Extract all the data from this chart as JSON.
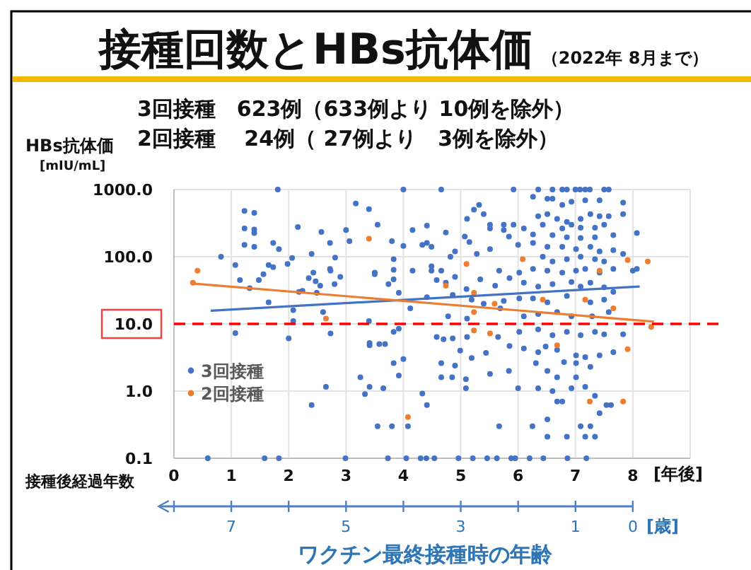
{
  "chart_data": {
    "type": "scatter",
    "title": "接種回数とHBs抗体価",
    "subtitle": "（2022年 8月まで）",
    "xlabel": "接種後経過年数",
    "ylabel": "HBs抗体価 [mIU/mL]",
    "x2label": "ワクチン最終接種時の年齢",
    "annotations": [
      "3回接種　623例（633例より 10例を除外）",
      "2回接種　 24例（ 27例より　3例を除外）",
      "[年後]",
      "[歳]"
    ],
    "log": "y",
    "xlim": [
      0,
      9
    ],
    "ylim": [
      0.1,
      1000
    ],
    "xticks": [
      0,
      1,
      2,
      3,
      4,
      5,
      6,
      7,
      8,
      {
        "value": 9,
        "label": null
      }
    ],
    "yticks": [
      0.1,
      {
        "value": 1,
        "label": "1.0"
      },
      {
        "value": 10,
        "label": "10.0"
      },
      {
        "value": 100,
        "label": "100.0"
      },
      {
        "value": 1000,
        "label": "1000.0"
      }
    ],
    "x2lim": [
      8,
      -1
    ],
    "x2ticks": [
      {
        "value": 8,
        "label": null
      },
      7,
      {
        "value": 6,
        "label": null
      },
      5,
      {
        "value": 4,
        "label": null
      },
      3,
      {
        "value": 2,
        "label": null
      },
      1,
      0
    ],
    "grid": true,
    "legend": "bottom left",
    "marker": "circle",
    "ref_lines": [
      {
        "axis": "y",
        "value": 10,
        "color": "#ff0000",
        "line_style": "dashed"
      }
    ],
    "series": [
      {
        "name": "3回接種",
        "color": "#4472c4",
        "x": [
          0.82,
          1.07,
          1.15,
          1.23,
          1.23,
          1.23,
          1.32,
          1.4,
          1.4,
          1.4,
          1.4,
          1.48,
          1.56,
          1.65,
          1.65,
          1.73,
          1.73,
          1.81,
          1.83,
          1.07,
          1.98,
          2.0,
          2.06,
          2.08,
          2.08,
          2.16,
          2.18,
          2.24,
          2.35,
          2.4,
          2.4,
          2.43,
          2.47,
          2.49,
          2.55,
          2.57,
          2.6,
          2.65,
          2.72,
          2.72,
          2.73,
          2.73,
          2.8,
          2.81,
          2.9,
          3.0,
          3.06,
          3.17,
          3.25,
          3.33,
          3.4,
          3.4,
          3.41,
          3.41,
          3.41,
          3.5,
          3.5,
          3.55,
          3.55,
          3.58,
          3.65,
          3.68,
          3.74,
          3.8,
          3.8,
          3.83,
          3.83,
          3.83,
          3.83,
          3.83,
          4.0,
          4.66,
          5.92,
          6.35,
          6.6,
          6.77,
          6.85,
          7.0,
          7.08,
          7.17,
          7.25,
          7.5,
          7.58,
          6.26,
          6.51,
          6.6,
          6.77,
          6.93,
          7.17,
          7.42,
          7.83,
          5.32,
          5.23,
          5.4,
          5.11,
          6.35,
          6.51,
          6.68,
          6.85,
          7.09,
          7.26,
          7.42,
          7.58,
          7.83,
          5.51,
          5.75,
          5.92,
          6.1,
          6.43,
          6.77,
          6.93,
          7.09,
          7.34,
          7.5,
          4.41,
          4.16,
          4.74,
          5.51,
          5.75,
          5.84,
          6.26,
          6.6,
          6.85,
          7.09,
          7.34,
          7.66,
          8.07,
          5.07,
          5.15,
          4.33,
          4.41,
          4.49,
          4.0,
          4.9,
          4.82,
          5.28,
          5.51,
          6.0,
          6.26,
          6.51,
          6.77,
          7.01,
          7.26,
          7.42,
          7.66,
          7.83,
          6.43,
          6.6,
          6.85,
          7.09,
          7.34,
          7.5,
          4.49,
          4.49,
          4.16,
          4.66,
          5.67,
          6.02,
          6.26,
          6.51,
          6.77,
          7.01,
          7.17,
          7.42,
          7.66,
          8.0,
          8.07,
          4.58,
          4.74,
          4.9,
          5.34,
          5.1,
          5.6,
          5.85,
          6.1,
          6.35,
          6.6,
          6.93,
          7.09,
          7.26,
          7.5,
          7.66,
          3.92,
          4.41,
          4.86,
          5.19,
          5.4,
          5.75,
          6.02,
          6.26,
          6.51,
          6.85,
          7.26,
          7.5,
          4.12,
          4.78,
          5.11,
          5.69,
          6.1,
          6.35,
          6.68,
          6.93,
          7.29,
          7.58,
          3.92,
          4.58,
          4.86,
          5.11,
          5.65,
          6.02,
          6.35,
          6.6,
          6.85,
          7.09,
          7.34,
          7.5,
          7.83,
          4.7,
          4.99,
          5.44,
          5.85,
          6.1,
          6.35,
          6.48,
          6.68,
          6.8,
          7.01,
          7.17,
          7.42,
          7.66,
          4.0,
          4.66,
          4.9,
          5.19,
          6.31,
          6.51,
          7.01,
          7.26,
          3.92,
          4.66,
          4.85,
          5.09,
          5.51,
          5.84,
          6.68,
          7.01,
          7.17,
          5.09,
          6.0,
          6.35,
          6.6,
          6.93,
          7.34,
          4.33,
          4.41,
          6.68,
          6.77,
          7.42,
          7.54,
          7.62,
          6.51,
          7.09,
          7.26,
          4.08,
          5.67,
          6.25,
          6.51,
          6.85,
          7.17,
          7.34,
          0.59,
          1.58,
          1.83,
          2.99,
          3.73,
          4.05,
          4.3,
          4.4,
          4.54,
          4.96,
          5.21,
          5.46,
          5.63,
          5.88,
          5.95,
          6.2,
          6.44,
          6.86,
          7.19
        ],
        "values": [
          100,
          75,
          45,
          480,
          263,
          150,
          34,
          450,
          255,
          225,
          140,
          45,
          55,
          75,
          21,
          160,
          70,
          1000,
          130,
          7.3,
          78,
          6.1,
          96,
          16,
          11,
          277,
          30,
          31,
          48,
          110,
          0.62,
          58,
          43,
          29,
          37,
          233,
          15,
          1.16,
          160,
          66,
          62,
          7.2,
          39,
          97,
          50,
          250,
          170,
          620,
          1.6,
          0.9,
          510,
          11,
          1.16,
          5.2,
          4.8,
          58,
          55,
          300,
          0.3,
          5,
          1.1,
          5,
          39,
          170,
          0.3,
          92,
          64,
          46,
          7.6,
          2.6,
          1000,
          1000,
          1000,
          1000,
          1000,
          1000,
          1000,
          1000,
          1000,
          1000,
          1000,
          1000,
          1000,
          780,
          730,
          730,
          590,
          660,
          690,
          690,
          640,
          590,
          500,
          430,
          365,
          400,
          430,
          365,
          330,
          365,
          430,
          400,
          400,
          430,
          300,
          300,
          300,
          263,
          300,
          263,
          300,
          270,
          270,
          300,
          290,
          250,
          230,
          263,
          250,
          200,
          215,
          210,
          195,
          190,
          195,
          210,
          225,
          200,
          165,
          150,
          160,
          140,
          145,
          120,
          100,
          110,
          130,
          150,
          160,
          140,
          140,
          130,
          140,
          120,
          125,
          110,
          100,
          85,
          92,
          100,
          92,
          85,
          72,
          62,
          62,
          62,
          62,
          58,
          66,
          62,
          58,
          62,
          66,
          58,
          66,
          62,
          66,
          45,
          41,
          50,
          46,
          33,
          37,
          48,
          41,
          36,
          39,
          42,
          36,
          41,
          35,
          30,
          29,
          25,
          27,
          23,
          20,
          22,
          24,
          24,
          21,
          26,
          21,
          23,
          17,
          13,
          12,
          17,
          13,
          14,
          15,
          13,
          13,
          15,
          8.5,
          6.4,
          6.1,
          6.4,
          6.4,
          7.6,
          8.3,
          6.8,
          7.6,
          6.8,
          7.6,
          7,
          7,
          5.9,
          4,
          3.7,
          4.7,
          4.3,
          3.8,
          4.6,
          4.1,
          2.7,
          3.4,
          3.2,
          3.4,
          3.8,
          3.0,
          2.6,
          2.4,
          3.1,
          2.6,
          2.0,
          2.6,
          2.3,
          1.7,
          1.6,
          1.6,
          1.5,
          1.8,
          2.0,
          1.6,
          1.6,
          1.16,
          1.1,
          1.1,
          1.1,
          1.0,
          1.1,
          0.85,
          0.92,
          0.62,
          0.7,
          0.7,
          0.47,
          0.62,
          0.62,
          0.38,
          0.3,
          0.3,
          0.3,
          0.3,
          0.3,
          0.21,
          0.21,
          0.21,
          0.21,
          0.1,
          0.1,
          0.1,
          0.1,
          0.1,
          0.1,
          0.1,
          0.1,
          0.1,
          0.1,
          0.1,
          0.1,
          0.1,
          0.1,
          0.1,
          0.1,
          0.1,
          0.1,
          0.1
        ]
      },
      {
        "name": "2回接種",
        "color": "#ed7d31",
        "x": [
          0.41,
          0.33,
          3.4,
          2.65,
          6.08,
          5.1,
          4.74,
          5.23,
          5.59,
          5.23,
          6.43,
          7.42,
          7.17,
          7.66,
          7.91,
          8.26,
          5.23,
          5.51,
          6.68,
          7.91,
          7.25,
          7.83,
          4.08,
          8.32
        ],
        "values": [
          62,
          41,
          185,
          12,
          92,
          78,
          37,
          29,
          20,
          15,
          23,
          62,
          23,
          17,
          89,
          85,
          8,
          7.2,
          4.8,
          4.2,
          0.7,
          0.7,
          0.41,
          9
        ]
      },
      {
        "type": "line",
        "color": "#4472c4",
        "marker": "none",
        "x": [
          0.64,
          8.12
        ],
        "values": [
          15.7,
          36
        ]
      },
      {
        "type": "line",
        "color": "#ed7d31",
        "marker": "none",
        "x": [
          0.32,
          8.37
        ],
        "values": [
          40,
          10.8
        ]
      }
    ]
  }
}
